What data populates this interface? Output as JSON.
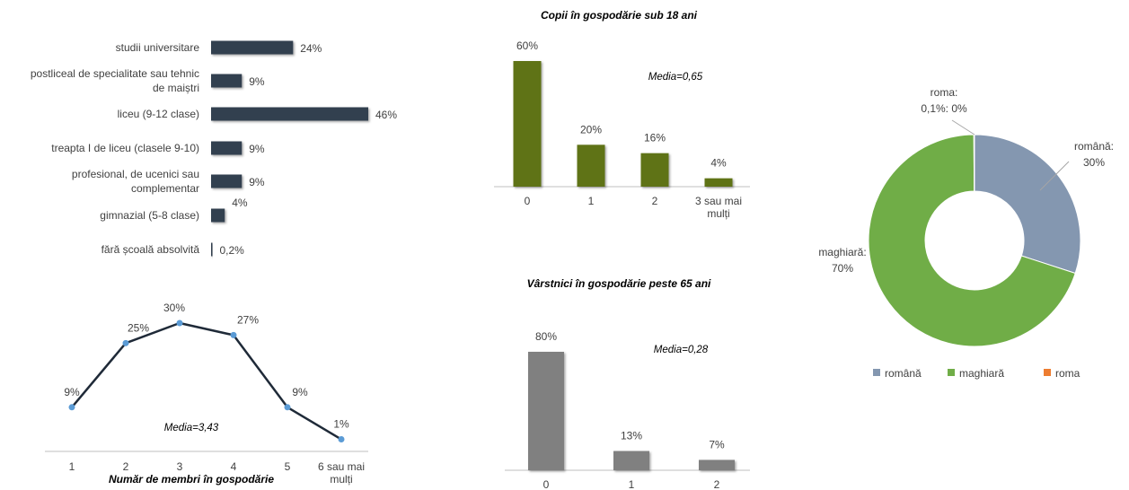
{
  "charts": [
    {
      "id": "education",
      "type": "bar",
      "orientation": "horizontal",
      "categories": [
        "studii universitare",
        "postliceal de specialitate sau tehnic de maiștri",
        "liceu (9-12 clase)",
        "treapta I de liceu (clasele 9-10)",
        "profesional, de ucenici sau complementar",
        "gimnazial (5-8 clase)",
        "fără școală absolvită"
      ],
      "category_lines": [
        [
          "studii universitare"
        ],
        [
          "postliceal de specialitate sau tehnic",
          "de maiștri"
        ],
        [
          "liceu (9-12 clase)"
        ],
        [
          "treapta I de liceu (clasele 9-10)"
        ],
        [
          "profesional, de ucenici sau",
          "complementar"
        ],
        [
          "gimnazial (5-8 clase)"
        ],
        [
          "fără școală absolvită"
        ]
      ],
      "values": [
        24,
        9,
        46,
        9,
        9,
        4,
        0.2
      ],
      "value_labels": [
        "24%",
        "9%",
        "46%",
        "9%",
        "9%",
        "4%",
        "0,2%"
      ],
      "bar_color": "#333f50",
      "xlim": [
        0,
        50
      ]
    },
    {
      "id": "children",
      "type": "bar",
      "title": "Copii în gospodărie sub 18 ani",
      "categories": [
        "0",
        "1",
        "2",
        "3 sau mai mulți"
      ],
      "category_lines": [
        [
          "0"
        ],
        [
          "1"
        ],
        [
          "2"
        ],
        [
          "3 sau mai",
          "mulți"
        ]
      ],
      "values": [
        60,
        20,
        16,
        4
      ],
      "value_labels": [
        "60%",
        "20%",
        "16%",
        "4%"
      ],
      "annotation": "Media=0,65",
      "bar_color": "#5f7317",
      "ylim": [
        0,
        60
      ]
    },
    {
      "id": "elderly",
      "type": "bar",
      "title": "Vârstnici în gospodărie peste 65 ani",
      "categories": [
        "0",
        "1",
        "2"
      ],
      "category_lines": [
        [
          "0"
        ],
        [
          "1"
        ],
        [
          "2"
        ]
      ],
      "values": [
        80,
        13,
        7
      ],
      "value_labels": [
        "80%",
        "13%",
        "7%"
      ],
      "annotation": "Media=0,28",
      "bar_color": "#808080",
      "ylim": [
        0,
        80
      ]
    },
    {
      "id": "members",
      "type": "line",
      "categories": [
        "1",
        "2",
        "3",
        "4",
        "5",
        "6 sau mai mulți"
      ],
      "category_lines": [
        [
          "1"
        ],
        [
          "2"
        ],
        [
          "3"
        ],
        [
          "4"
        ],
        [
          "5"
        ],
        [
          "6 sau mai",
          "mulți"
        ]
      ],
      "values": [
        9,
        25,
        30,
        27,
        9,
        1
      ],
      "value_labels": [
        "9%",
        "25%",
        "30%",
        "27%",
        "9%",
        "1%"
      ],
      "xlabel": "Număr de membri în gospodărie",
      "annotation": "Media=3,43",
      "line_color": "#1f2a38",
      "marker_color": "#5b9bd5",
      "ylim": [
        0,
        30
      ]
    },
    {
      "id": "ethnicity",
      "type": "pie",
      "donut": true,
      "labels": [
        "română",
        "maghiară",
        "roma"
      ],
      "values": [
        30,
        69.9,
        0.1
      ],
      "slice_label_lines": [
        [
          "română:",
          "30%"
        ],
        [
          "maghiară:",
          "70%"
        ],
        [
          "roma:",
          "0,1%: 0%"
        ]
      ],
      "colors": [
        "#8497b0",
        "#70ad47",
        "#ed7d31"
      ],
      "legend": "bottom",
      "legend_labels": [
        "română",
        "maghiară",
        "roma"
      ]
    }
  ]
}
